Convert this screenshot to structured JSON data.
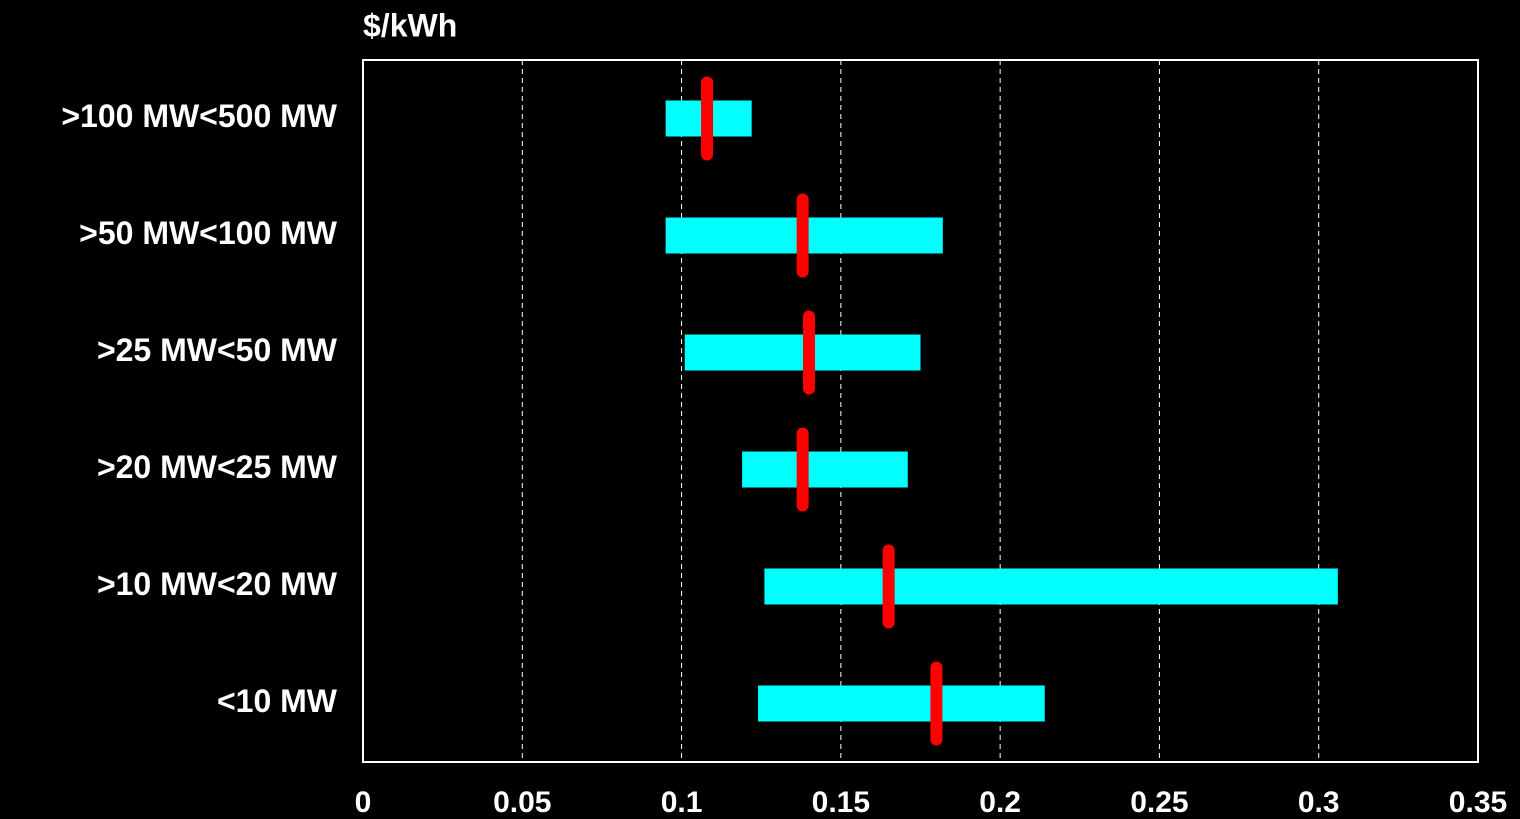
{
  "chart_data": {
    "type": "range",
    "axis_label": "$/kWh",
    "categories": [
      ">100 MW<500 MW",
      ">50 MW<100 MW",
      ">25 MW<50 MW",
      ">20 MW<25 MW",
      ">10 MW<20 MW",
      "<10 MW"
    ],
    "low": [
      0.095,
      0.095,
      0.101,
      0.119,
      0.126,
      0.124
    ],
    "high": [
      0.122,
      0.182,
      0.175,
      0.171,
      0.306,
      0.214
    ],
    "marker": [
      0.108,
      0.138,
      0.14,
      0.138,
      0.165,
      0.18
    ],
    "bar_color": "#00ffff",
    "marker_color": "#ff0000",
    "xlim": [
      0,
      0.35
    ],
    "xticks": [
      0,
      0.05,
      0.1,
      0.15,
      0.2,
      0.25,
      0.3,
      0.35
    ],
    "grid": true
  }
}
